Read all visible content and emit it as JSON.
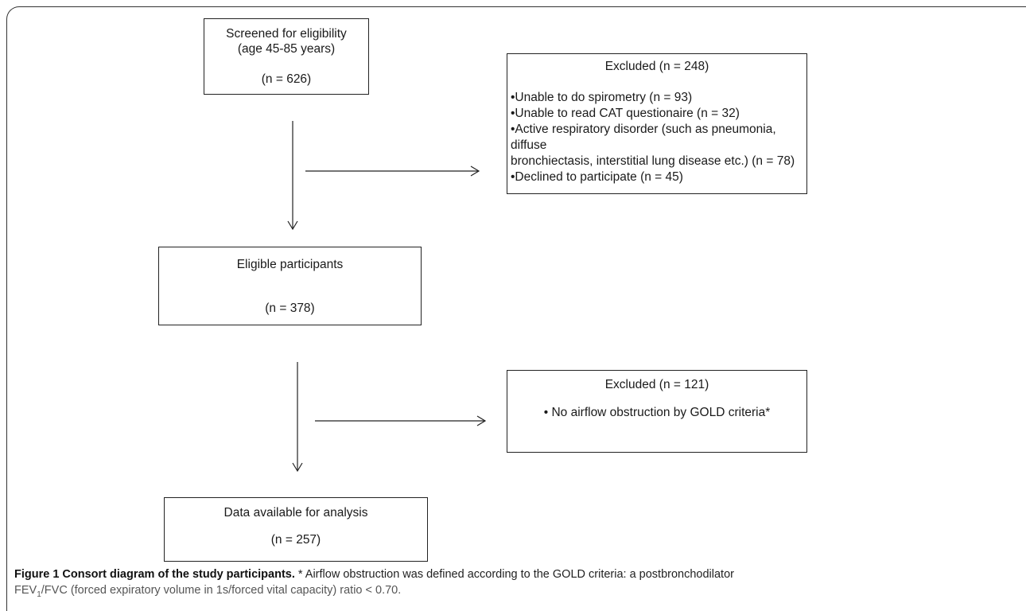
{
  "boxes": {
    "screened": {
      "line1": "Screened for eligibility",
      "line2": "(age 45-85 years)",
      "count": "(n = 626)"
    },
    "excluded1": {
      "title": "Excluded (n = 248)",
      "items": [
        "•Unable to do spirometry (n = 93)",
        "•Unable to read CAT questionaire (n = 32)",
        "•Active respiratory disorder  (such as pneumonia, diffuse",
        "bronchiectasis, interstitial lung disease etc.) (n = 78)",
        "•Declined to participate (n = 45)"
      ]
    },
    "eligible": {
      "title": "Eligible participants",
      "count": "(n = 378)"
    },
    "excluded2": {
      "title": "Excluded (n = 121)",
      "item": "• No airflow obstruction by GOLD criteria*"
    },
    "analysis": {
      "title": "Data available for analysis",
      "count": "(n = 257)"
    }
  },
  "caption": {
    "bold": "Figure 1 Consort diagram of the study participants.",
    "text_a": " * Airflow obstruction was defined according to the GOLD criteria: a postbronchodilator",
    "text_b_pre": "FEV",
    "text_b_sub": "1",
    "text_b_post": "/FVC (forced expiratory volume in 1s/forced vital capacity) ratio < 0.70."
  }
}
